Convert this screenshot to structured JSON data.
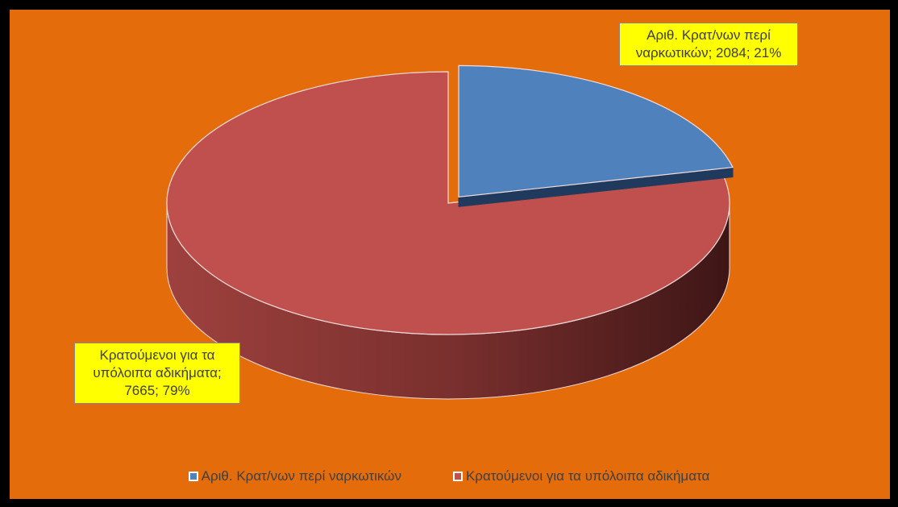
{
  "chart_data": {
    "type": "pie3d",
    "categories": [
      "Αριθ. Κρατ/νων περί ναρκωτικών",
      "Κρατούμενοι για τα υπόλοιπα αδικήματα"
    ],
    "values": [
      2084,
      7665
    ],
    "value_labels": [
      "Αριθ. Κρατ/νων περί ναρκωτικών; 2084; 21%",
      "Κρατούμενοι για τα υπόλοιπα αδικήματα; 7665; 79%"
    ],
    "colors": [
      "#4f81bd",
      "#c0504d"
    ],
    "legend": "bottom"
  }
}
